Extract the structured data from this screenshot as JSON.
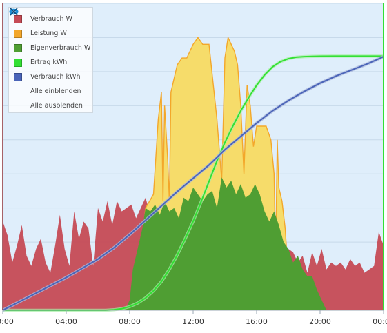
{
  "chart_data": {
    "type": "area",
    "x_ticks": [
      "00:00",
      "04:00",
      "08:00",
      "12:00",
      "16:00",
      "20:00",
      "00:00"
    ],
    "x_range_hours": [
      0,
      24
    ],
    "y_range_power": [
      0,
      4500
    ],
    "y_range_energy": [
      0,
      30
    ],
    "grid": true,
    "legend_position": "top-left",
    "legend_actions": {
      "show_all": "Alle einblenden",
      "hide_all": "Alle ausblenden"
    },
    "series": [
      {
        "name": "Verbrauch W",
        "color": "#c54a55",
        "type": "area",
        "x": [
          0,
          0.3,
          0.6,
          0.9,
          1.2,
          1.5,
          1.8,
          2.1,
          2.4,
          2.7,
          3,
          3.3,
          3.6,
          3.9,
          4.2,
          4.5,
          4.8,
          5.1,
          5.4,
          5.7,
          6,
          6.3,
          6.6,
          6.9,
          7.2,
          7.5,
          7.8,
          8.1,
          8.4,
          8.7,
          9,
          9.3,
          9.6,
          9.9,
          10.5,
          11,
          11.5,
          12,
          12.5,
          13,
          13.5,
          14,
          14.5,
          15,
          15.5,
          16,
          16.5,
          17,
          17.5,
          18,
          18.3,
          18.6,
          18.9,
          19.2,
          19.5,
          19.8,
          20.1,
          20.4,
          20.7,
          21,
          21.3,
          21.6,
          21.9,
          22.2,
          22.5,
          22.8,
          23.1,
          23.4,
          23.7,
          24
        ],
        "values": [
          1300,
          1100,
          700,
          950,
          1250,
          800,
          650,
          900,
          1050,
          700,
          550,
          950,
          1400,
          900,
          650,
          1450,
          1050,
          1300,
          1200,
          650,
          1500,
          1300,
          1600,
          1250,
          1600,
          1450,
          1500,
          1550,
          1350,
          1500,
          1650,
          1400,
          1450,
          1450,
          1450,
          1450,
          1450,
          1450,
          1400,
          1400,
          1350,
          1350,
          1400,
          1450,
          1400,
          1400,
          1400,
          1300,
          1000,
          900,
          850,
          700,
          800,
          550,
          850,
          650,
          900,
          600,
          700,
          650,
          700,
          600,
          750,
          650,
          700,
          550,
          600,
          650,
          1150,
          950
        ]
      },
      {
        "name": "Leistung W",
        "color": "#f3a72a",
        "type": "area",
        "x": [
          7.5,
          8.0,
          8.5,
          9.0,
          9.5,
          9.8,
          10.0,
          10.1,
          10.2,
          10.4,
          10.5,
          10.6,
          10.8,
          11.0,
          11.3,
          11.6,
          12.0,
          12.3,
          12.6,
          13.0,
          13.5,
          13.8,
          14.0,
          14.2,
          14.4,
          14.6,
          14.8,
          15.0,
          15.2,
          15.4,
          15.6,
          15.8,
          16.0,
          16.3,
          16.6,
          16.9,
          17.1,
          17.2,
          17.3,
          17.4,
          17.6,
          17.8,
          18.0,
          18.2,
          18.5
        ],
        "values": [
          0,
          50,
          200,
          1500,
          1700,
          2800,
          3200,
          1600,
          3000,
          2200,
          1600,
          3200,
          3400,
          3600,
          3700,
          3700,
          3900,
          4000,
          3900,
          3900,
          2800,
          1900,
          3700,
          4000,
          3900,
          3800,
          3600,
          3000,
          2000,
          3300,
          3000,
          2400,
          2700,
          2700,
          2700,
          2500,
          2000,
          800,
          2500,
          1800,
          1600,
          1200,
          500,
          200,
          0
        ]
      },
      {
        "name": "Eigenverbrauch W",
        "color": "#4f9e33",
        "type": "area",
        "x": [
          7.5,
          7.8,
          8.0,
          8.2,
          8.5,
          8.8,
          9.0,
          9.3,
          9.6,
          9.9,
          10.2,
          10.5,
          10.8,
          11.1,
          11.4,
          11.7,
          12.0,
          12.3,
          12.6,
          12.9,
          13.2,
          13.5,
          13.8,
          14.1,
          14.4,
          14.7,
          15.0,
          15.3,
          15.6,
          15.9,
          16.2,
          16.5,
          16.8,
          17.1,
          17.4,
          17.7,
          18.0,
          18.3,
          18.6,
          18.9,
          19.2,
          19.5,
          19.8,
          20.1,
          20.4
        ],
        "values": [
          0,
          50,
          150,
          600,
          900,
          1200,
          1500,
          1450,
          1550,
          1400,
          1600,
          1450,
          1500,
          1350,
          1650,
          1600,
          1800,
          1700,
          1600,
          1700,
          1750,
          1500,
          1950,
          1800,
          1900,
          1700,
          1850,
          1650,
          1700,
          1850,
          1700,
          1450,
          1300,
          1450,
          1250,
          1000,
          900,
          700,
          800,
          600,
          500,
          500,
          300,
          150,
          0
        ]
      },
      {
        "name": "Ertrag kWh",
        "color": "#33e033",
        "type": "line",
        "x": [
          0,
          6.5,
          7,
          7.5,
          8,
          8.5,
          9,
          9.5,
          10,
          10.5,
          11,
          11.5,
          12,
          12.5,
          13,
          13.5,
          14,
          14.5,
          15,
          15.5,
          16,
          16.5,
          17,
          17.5,
          18,
          18.5,
          19,
          19.5,
          20,
          21,
          22,
          23,
          24
        ],
        "values": [
          0,
          0,
          0.05,
          0.15,
          0.35,
          0.7,
          1.2,
          1.9,
          2.8,
          4.0,
          5.4,
          7.0,
          8.7,
          10.6,
          12.6,
          14.6,
          16.4,
          18.0,
          19.5,
          20.8,
          22.0,
          23.0,
          23.8,
          24.3,
          24.6,
          24.75,
          24.8,
          24.82,
          24.84,
          24.85,
          24.85,
          24.85,
          24.85
        ]
      },
      {
        "name": "Verbrauch kWh",
        "color": "#4a64b8",
        "type": "line",
        "x": [
          0,
          1,
          2,
          3,
          4,
          5,
          6,
          7,
          8,
          9,
          10,
          11,
          12,
          13,
          14,
          15,
          16,
          17,
          18,
          19,
          20,
          21,
          22,
          23,
          24
        ],
        "values": [
          0,
          0.8,
          1.6,
          2.4,
          3.2,
          4.1,
          5.0,
          6.1,
          7.4,
          8.8,
          10.2,
          11.6,
          12.9,
          14.2,
          15.7,
          17.0,
          18.3,
          19.5,
          20.5,
          21.4,
          22.2,
          22.9,
          23.5,
          24.1,
          24.8
        ]
      }
    ]
  }
}
